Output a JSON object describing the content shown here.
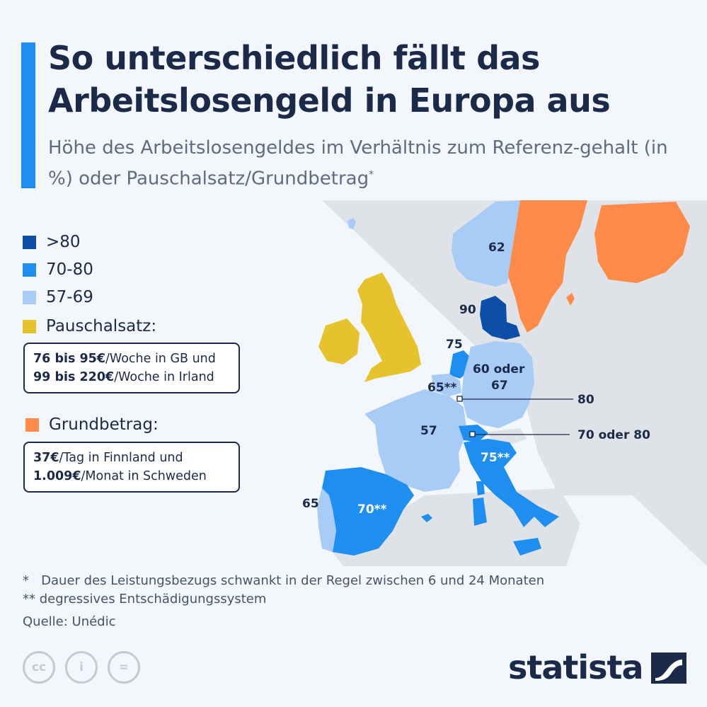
{
  "title": "So unterschiedlich fällt das Arbeitslosengeld in Europa aus",
  "subtitle": "Höhe des Arbeitslosengeldes im Verhältnis zum Referenz-gehalt (in %) oder Pauschalsatz/Grundbetrag",
  "subtitle_marker": "*",
  "legend": {
    "items": [
      {
        "label": ">80",
        "color": "#0c4ea8"
      },
      {
        "label": "70-80",
        "color": "#1e8ff0"
      },
      {
        "label": "57-69",
        "color": "#a8ccf6"
      },
      {
        "label": "Pauschalsatz:",
        "color": "#e6c22d"
      },
      {
        "label": "Grundbetrag:",
        "color": "#ff8b4a"
      }
    ],
    "pauschal_note": {
      "line1_bold": "76 bis 95€",
      "line1_rest": "/Woche in GB und",
      "line2_bold": "99 bis 220€",
      "line2_rest": "/Woche in Irland"
    },
    "grund_note": {
      "line1_bold": "37€",
      "line1_rest": "/Tag in Finnland und",
      "line2_bold": "1.009€",
      "line2_rest": "/Monat in Schweden"
    }
  },
  "map_labels": {
    "norway": "62",
    "denmark": "90",
    "netherlands": "75",
    "germany_1": "60 oder",
    "germany_2": "67",
    "belgium": "65**",
    "luxembourg": "80",
    "france": "57",
    "switzerland": "70 oder 80",
    "italy": "75**",
    "spain": "70**",
    "portugal": "65"
  },
  "footnotes": [
    "*   Dauer des Leistungsbezugs schwankt in der Regel zwischen 6 und 24 Monaten",
    "** degressives Entschädigungssystem"
  ],
  "source": "Quelle: Unédic",
  "license_icons": [
    "cc-icon",
    "attribution-icon",
    "no-derivatives-icon"
  ],
  "license_icon_text": {
    "cc": "cc",
    "by": "i",
    "nd": "="
  },
  "brand": "statista",
  "colors": {
    "background": "#f3f6fa",
    "land_grey": "#dfe3e8",
    "dark_blue": "#0c4ea8",
    "mid_blue": "#1e8ff0",
    "light_blue": "#a8ccf6",
    "yellow": "#e6c22d",
    "orange": "#ff8b4a",
    "title": "#1c2a4a"
  }
}
